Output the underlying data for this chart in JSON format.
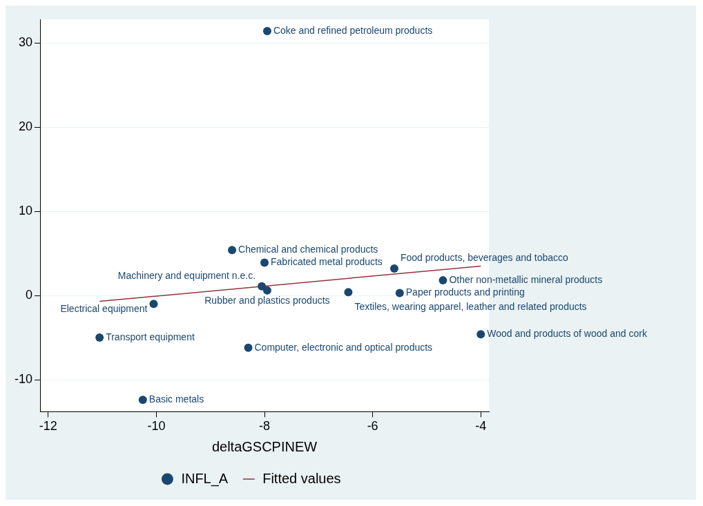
{
  "chart_data": {
    "type": "scatter",
    "xlabel": "deltaGSCPINEW",
    "xlim": [
      -12.15,
      -3.85
    ],
    "ylim": [
      -13.8,
      32.8
    ],
    "xticks": [
      -12,
      -10,
      -8,
      -6,
      -4
    ],
    "yticks": [
      -10,
      0,
      10,
      20,
      30
    ],
    "grid": "y",
    "legend": "bottom",
    "series": [
      {
        "name": "INFL_A",
        "marker": "circle",
        "color": "#1a476f",
        "x": [
          -7.95,
          -8.6,
          -8.0,
          -8.05,
          -7.95,
          -6.45,
          -5.6,
          -4.7,
          -5.5,
          -4.0,
          -10.05,
          -11.05,
          -8.3,
          -10.25
        ],
        "values": [
          31.4,
          5.4,
          3.9,
          1.1,
          0.6,
          0.4,
          3.2,
          1.8,
          0.3,
          -4.6,
          -1.0,
          -5.0,
          -6.2,
          -12.4
        ],
        "value_labels": [
          "Coke and refined petroleum products",
          "Chemical and chemical products",
          "Fabricated metal products",
          "Machinery and equipment n.e.c.",
          "Rubber and plastics products",
          "Textiles, wearing apparel, leather and related products",
          "Food products, beverages and tobacco",
          "Other non-metallic mineral products",
          "Paper products and printing",
          "Wood and products of wood and cork",
          "Electrical equipment",
          "Transport equipment",
          "Computer, electronic and optical products",
          "Basic metals"
        ]
      },
      {
        "name": "Fitted values",
        "type": "line",
        "marker": "none",
        "line_style": "solid",
        "color": "#90353b",
        "x": [
          -11.05,
          -4.0
        ],
        "values": [
          -0.7,
          3.5
        ]
      }
    ]
  }
}
